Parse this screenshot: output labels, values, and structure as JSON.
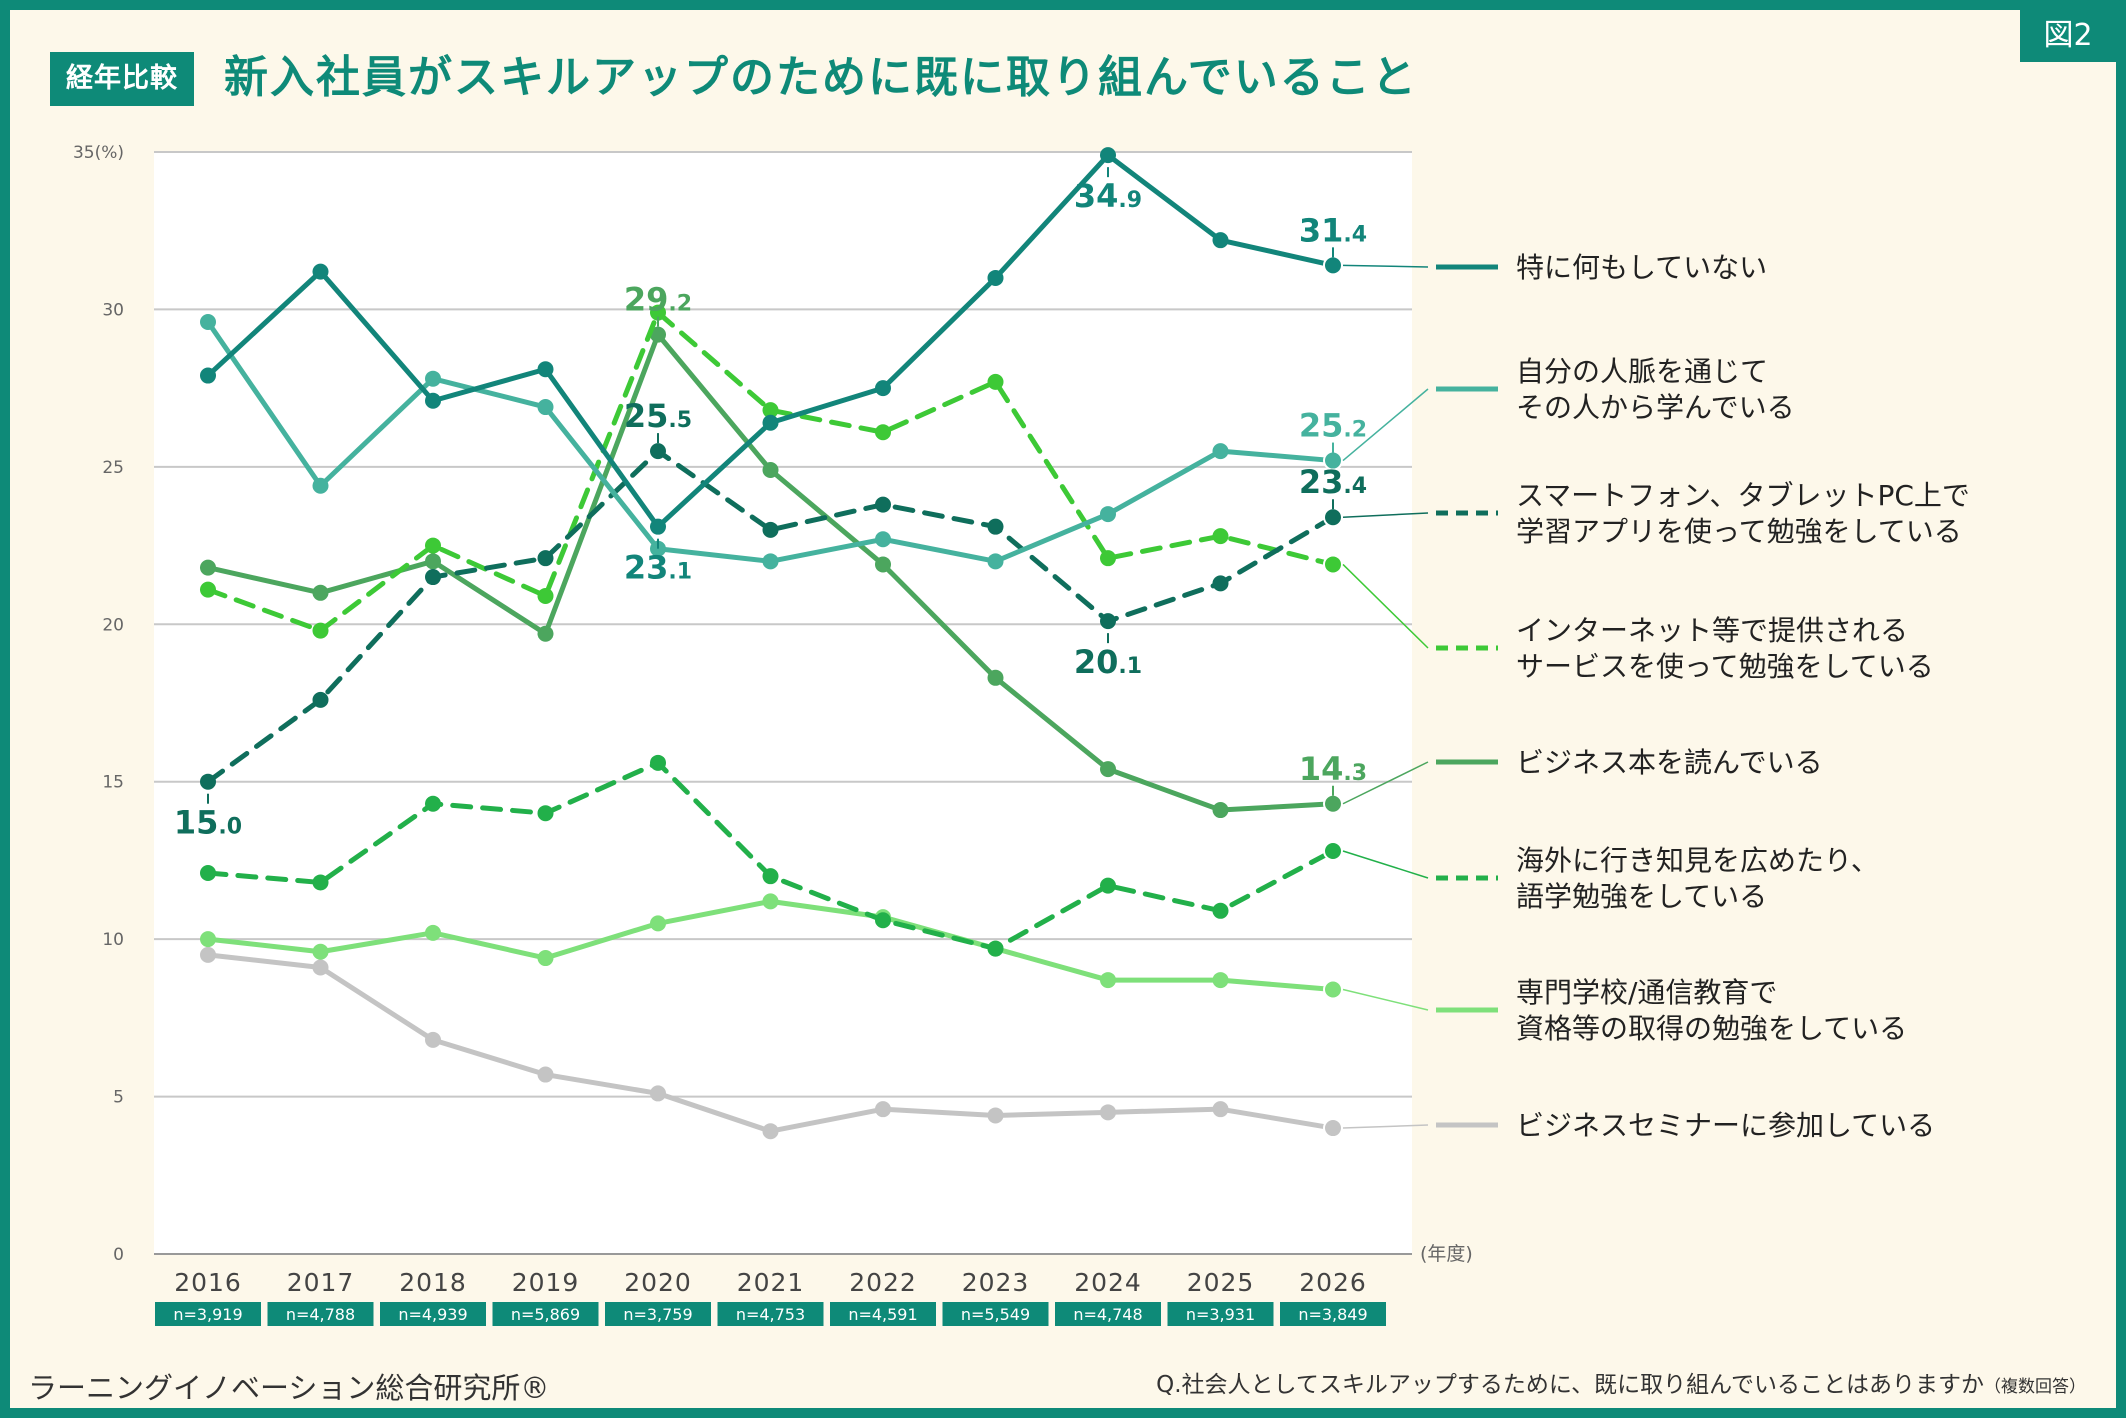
{
  "figure_tag": "図2",
  "header": {
    "badge": "経年比較",
    "title": "新入社員がスキルアップのために既に取り組んでいること"
  },
  "footer": {
    "organization": "ラーニングイノベーション総合研究所®",
    "question": "Q.社会人としてスキルアップするために、既に取り組んでいることはありますか",
    "question_note": "（複数回答）"
  },
  "colors": {
    "background": "#fdf8ea",
    "frame": "#0e8a78",
    "gridline": "#c8c8c8"
  },
  "chart_data": {
    "type": "line",
    "title": "新入社員がスキルアップのために既に取り組んでいること",
    "categories": [
      "2016",
      "2017",
      "2018",
      "2019",
      "2020",
      "2021",
      "2022",
      "2023",
      "2024",
      "2025",
      "2026"
    ],
    "sample_sizes": [
      "n=3,919",
      "n=4,788",
      "n=4,939",
      "n=5,869",
      "n=3,759",
      "n=4,753",
      "n=4,591",
      "n=5,549",
      "n=4,748",
      "n=3,931",
      "n=3,849"
    ],
    "xlabel": "(年度)",
    "ylabel": "(%)",
    "ylim": [
      0,
      35
    ],
    "yticks": [
      0,
      5,
      10,
      15,
      20,
      25,
      30,
      35
    ],
    "ytick_labels": [
      "0",
      "5",
      "10",
      "15",
      "20",
      "25",
      "30",
      "35(%)"
    ],
    "grid": true,
    "legend_position": "right",
    "series": [
      {
        "name": "特に何もしていない",
        "color": "#12857a",
        "style": "solid",
        "values": [
          27.9,
          31.2,
          27.1,
          28.1,
          23.1,
          26.4,
          27.5,
          31.0,
          34.9,
          32.2,
          31.4
        ],
        "data_labels": [
          {
            "index": 4,
            "text": "23.1",
            "position": "below"
          },
          {
            "index": 8,
            "text": "34.9",
            "position": "below"
          },
          {
            "index": 10,
            "text": "31.4",
            "position": "above"
          }
        ]
      },
      {
        "name": "自分の人脈を通じてその人から学んでいる",
        "color": "#45b29e",
        "style": "solid",
        "values": [
          29.6,
          24.4,
          27.8,
          26.9,
          22.4,
          22.0,
          22.7,
          22.0,
          23.5,
          25.5,
          25.2
        ],
        "data_labels": [
          {
            "index": 10,
            "text": "25.2",
            "position": "above"
          }
        ]
      },
      {
        "name": "スマートフォン、タブレットPC上で学習アプリを使って勉強をしている",
        "color": "#0f6e5c",
        "style": "dashed",
        "values": [
          15.0,
          17.6,
          21.5,
          22.1,
          25.5,
          23.0,
          23.8,
          23.1,
          20.1,
          21.3,
          23.4
        ],
        "data_labels": [
          {
            "index": 0,
            "text": "15.0",
            "position": "below"
          },
          {
            "index": 4,
            "text": "25.5",
            "position": "above"
          },
          {
            "index": 8,
            "text": "20.1",
            "position": "below"
          },
          {
            "index": 10,
            "text": "23.4",
            "position": "above"
          }
        ]
      },
      {
        "name": "インターネット等で提供されるサービスを使って勉強をしている",
        "color": "#3dc936",
        "style": "dashed",
        "values": [
          21.1,
          19.8,
          22.5,
          20.9,
          29.9,
          26.8,
          26.1,
          27.7,
          22.1,
          22.8,
          21.9
        ],
        "data_labels": []
      },
      {
        "name": "ビジネス本を読んでいる",
        "color": "#4ca65e",
        "style": "solid",
        "values": [
          21.8,
          21.0,
          22.0,
          19.7,
          29.2,
          24.9,
          21.9,
          18.3,
          15.4,
          14.1,
          14.3
        ],
        "data_labels": [
          {
            "index": 4,
            "text": "29.2",
            "position": "above"
          },
          {
            "index": 10,
            "text": "14.3",
            "position": "above"
          }
        ]
      },
      {
        "name": "海外に行き知見を広めたり、語学勉強をしている",
        "color": "#22b04a",
        "style": "dashed",
        "values": [
          12.1,
          11.8,
          14.3,
          14.0,
          15.6,
          12.0,
          10.6,
          9.7,
          11.7,
          10.9,
          12.8
        ],
        "data_labels": []
      },
      {
        "name": "専門学校/通信教育で資格等の取得の勉強をしている",
        "color": "#7ee07a",
        "style": "solid",
        "values": [
          10.0,
          9.6,
          10.2,
          9.4,
          10.5,
          11.2,
          10.7,
          9.7,
          8.7,
          8.7,
          8.4
        ],
        "data_labels": []
      },
      {
        "name": "ビジネスセミナーに参加している",
        "color": "#c4c4c4",
        "style": "solid",
        "values": [
          9.5,
          9.1,
          6.8,
          5.7,
          5.1,
          3.9,
          4.6,
          4.4,
          4.5,
          4.6,
          4.0
        ],
        "data_labels": []
      }
    ],
    "legend": [
      {
        "series": 0,
        "lines": [
          "特に何もしていない"
        ]
      },
      {
        "series": 1,
        "lines": [
          "自分の人脈を通じて",
          "その人から学んでいる"
        ]
      },
      {
        "series": 2,
        "lines": [
          "スマートフォン、タブレットPC上で",
          "学習アプリを使って勉強をしている"
        ]
      },
      {
        "series": 3,
        "lines": [
          "インターネット等で提供される",
          "サービスを使って勉強をしている"
        ]
      },
      {
        "series": 4,
        "lines": [
          "ビジネス本を読んでいる"
        ]
      },
      {
        "series": 5,
        "lines": [
          "海外に行き知見を広めたり、",
          "語学勉強をしている"
        ]
      },
      {
        "series": 6,
        "lines": [
          "専門学校/通信教育で",
          "資格等の取得の勉強をしている"
        ]
      },
      {
        "series": 7,
        "lines": [
          "ビジネスセミナーに参加している"
        ]
      }
    ]
  }
}
